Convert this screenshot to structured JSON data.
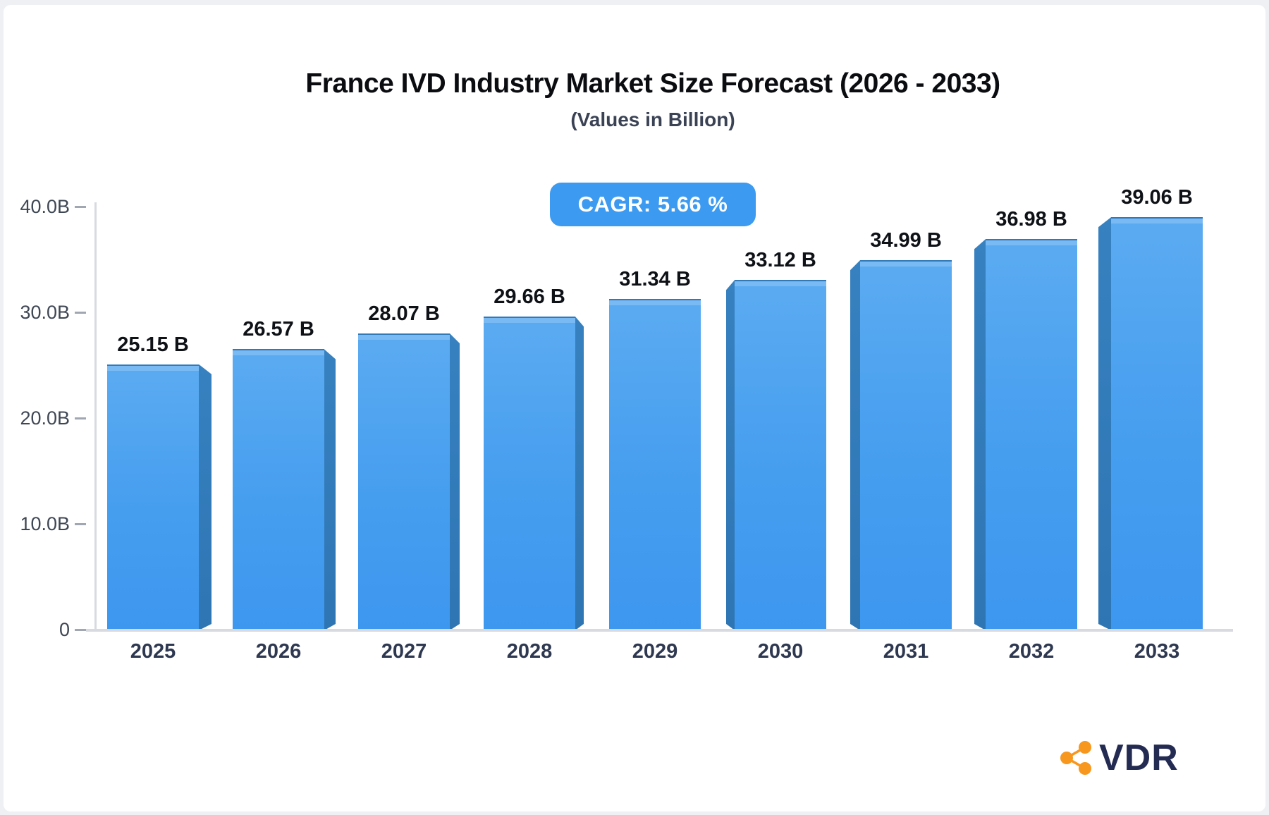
{
  "header": {
    "title": "France IVD Industry Market Size Forecast (2026 - 2033)",
    "subtitle": "(Values in Billion)",
    "cagr_label": "CAGR: 5.66 %"
  },
  "chart_data": {
    "type": "bar",
    "title": "France IVD Industry Market Size Forecast (2026 - 2033)",
    "subtitle": "(Values in Billion)",
    "xlabel": "",
    "ylabel": "",
    "categories": [
      "2025",
      "2026",
      "2027",
      "2028",
      "2029",
      "2030",
      "2031",
      "2032",
      "2033"
    ],
    "values": [
      25.15,
      26.57,
      28.07,
      29.66,
      31.34,
      33.12,
      34.99,
      36.98,
      39.06
    ],
    "value_labels": [
      "25.15 B",
      "26.57 B",
      "28.07 B",
      "29.66 B",
      "31.34 B",
      "33.12 B",
      "34.99 B",
      "36.98 B",
      "39.06 B"
    ],
    "cagr": "5.66 %",
    "ylim": [
      0,
      40
    ],
    "y_ticks": [
      {
        "value": 40,
        "label": "40.0B"
      },
      {
        "value": 30,
        "label": "30.0B"
      },
      {
        "value": 20,
        "label": "20.0B"
      },
      {
        "value": 10,
        "label": "10.0B"
      },
      {
        "value": 0,
        "label": "0"
      }
    ],
    "grid": false,
    "legend": false,
    "style": "3d-perspective-columns"
  },
  "colors": {
    "bar_face_top": "#5babf1",
    "bar_face_bottom": "#3e97ef",
    "bar_side": "#2f78b6",
    "bar_top_band": "#7abaf4",
    "badge_background": "#3c9af0",
    "badge_text": "#ffffff",
    "axis_line": "#d7dae0",
    "title_text": "#0b0c10",
    "logo_orange": "#f8971d",
    "logo_navy": "#242b52"
  },
  "logo": {
    "text": "VDR",
    "icon": "share-network-icon"
  }
}
